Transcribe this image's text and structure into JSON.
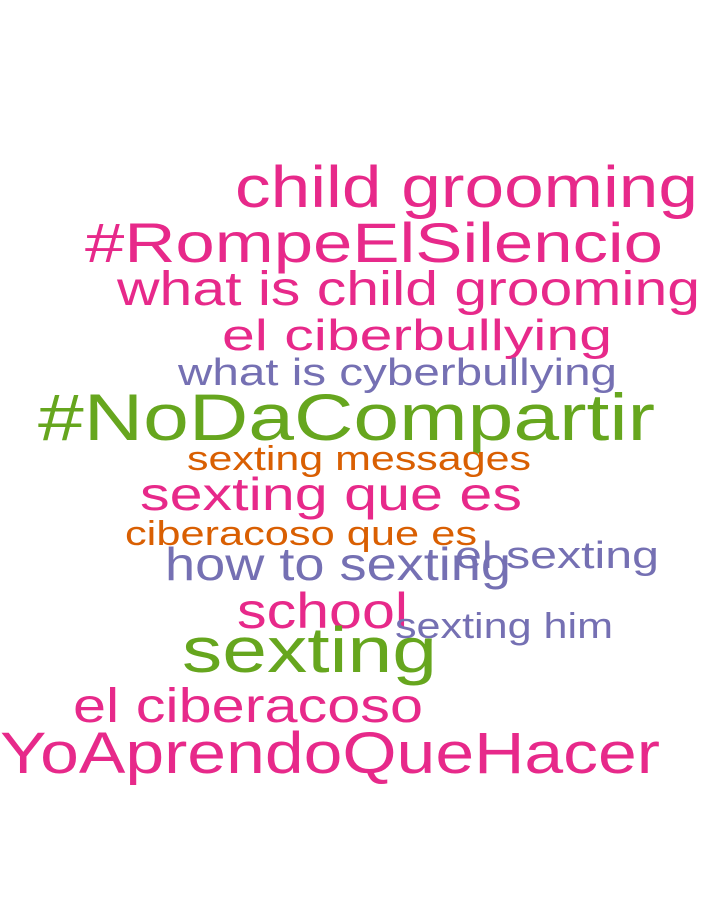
{
  "words": [
    {
      "text": "child grooming",
      "color": "#e7298a"
    },
    {
      "text": "#RompeElSilencio",
      "color": "#e7298a"
    },
    {
      "text": "what is child grooming",
      "color": "#e7298a"
    },
    {
      "text": "el ciberbullying",
      "color": "#e7298a"
    },
    {
      "text": "what is cyberbullying",
      "color": "#7570b3"
    },
    {
      "text": "#NoDaCompartir",
      "color": "#66a61e"
    },
    {
      "text": "sexting messages",
      "color": "#d95f02"
    },
    {
      "text": "sexting que es",
      "color": "#e7298a"
    },
    {
      "text": "ciberacoso que es",
      "color": "#d95f02"
    },
    {
      "text": "el sexting",
      "color": "#7570b3"
    },
    {
      "text": "how to sexting",
      "color": "#7570b3"
    },
    {
      "text": "school",
      "color": "#e7298a"
    },
    {
      "text": "sexting him",
      "color": "#7570b3"
    },
    {
      "text": "sexting",
      "color": "#66a61e"
    },
    {
      "text": "el ciberacoso",
      "color": "#e7298a"
    },
    {
      "text": "YoAprendoQueHacer",
      "color": "#e7298a"
    }
  ]
}
